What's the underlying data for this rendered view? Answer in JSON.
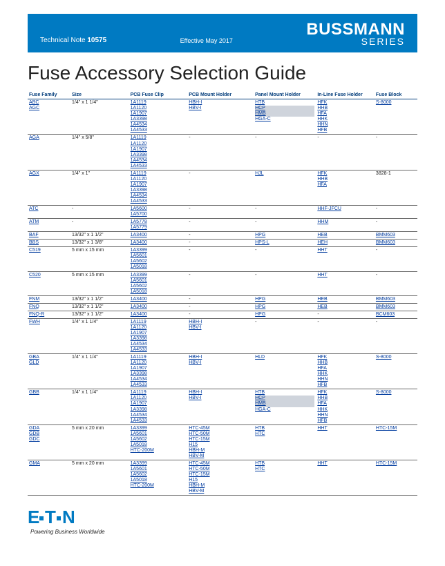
{
  "header": {
    "technote_label": "Technical Note",
    "technote_num": "10575",
    "effective": "Effective May 2017",
    "brand_top": "BUSSMANN",
    "brand_bot": "SERIES"
  },
  "title": "Fuse Accessory Selection Guide",
  "columns": [
    "Fuse Family",
    "Size",
    "PCB Fuse Clip",
    "PCB Mount Holder",
    "Panel Mount Holder",
    "In-Line Fuse Holder",
    "Fuse Block"
  ],
  "rows": [
    {
      "family": [
        "ABC",
        "AGC"
      ],
      "size": "1/4\" x 1 1/4\"",
      "clip": [
        "1A1119",
        "1A1120",
        "1A1907",
        "1A3398",
        "1A4534",
        "1A4533"
      ],
      "pcb": [
        "HBH-I",
        "HBV-I"
      ],
      "panel": [
        "HTB",
        "HCP",
        "HMB",
        "HGA-C"
      ],
      "inline": [
        "HFK",
        "HHB",
        "HFA",
        "HHK",
        "HHN",
        "HFB"
      ],
      "block": [
        "S-8000"
      ]
    },
    {
      "family": [
        "AGA"
      ],
      "size": "1/4\" x 5/8\"",
      "clip": [
        "1A1119",
        "1A1120",
        "1A1907",
        "1A3398",
        "1A4534",
        "1A4533"
      ],
      "pcb": [
        "-"
      ],
      "panel": [
        "-"
      ],
      "inline": [
        "-"
      ],
      "block": [
        "-"
      ]
    },
    {
      "family": [
        "AGX"
      ],
      "size": "1/4\" x 1\"",
      "clip": [
        "1A1119",
        "1A1120",
        "1A1907",
        "1A3398",
        "1A4534",
        "1A4533"
      ],
      "pcb": [
        "-"
      ],
      "panel": [
        "HJL"
      ],
      "inline": [
        "HFK",
        "HHB",
        "HFA"
      ],
      "block": [
        "3828-1"
      ]
    },
    {
      "family": [
        "ATC"
      ],
      "size": "-",
      "clip": [
        "1A5600",
        "1A5700"
      ],
      "pcb": [
        "-"
      ],
      "panel": [
        "-"
      ],
      "inline": [
        "HHF-JFCU"
      ],
      "block": [
        "-"
      ]
    },
    {
      "family": [
        "ATM"
      ],
      "size": "-",
      "clip": [
        "1A5778",
        "1A5779"
      ],
      "pcb": [
        "-"
      ],
      "panel": [
        "-"
      ],
      "inline": [
        "HHM"
      ],
      "block": [
        "-"
      ]
    },
    {
      "family": [
        "BAF"
      ],
      "size": "13/32\" x 1 1/2\"",
      "clip": [
        "1A3400"
      ],
      "pcb": [
        "-"
      ],
      "panel": [
        "HPG"
      ],
      "inline": [
        "HEB"
      ],
      "block": [
        "BMM603"
      ]
    },
    {
      "family": [
        "BBS"
      ],
      "size": "13/32\" x 1 3/8\"",
      "clip": [
        "1A3400"
      ],
      "pcb": [
        "-"
      ],
      "panel": [
        "HPS-L"
      ],
      "inline": [
        "HEH"
      ],
      "block": [
        "BMM603"
      ]
    },
    {
      "family": [
        "C519"
      ],
      "size": "5 mm x 15 mm",
      "clip": [
        "1A3399",
        "1A5601",
        "1A5602",
        "1A5018"
      ],
      "pcb": [
        "-"
      ],
      "panel": [
        "-"
      ],
      "inline": [
        "HHT"
      ],
      "block": [
        "-"
      ]
    },
    {
      "family": [
        "C520"
      ],
      "size": "5 mm x 15 mm",
      "clip": [
        "1A3399",
        "1A5601",
        "1A5602",
        "1A5018"
      ],
      "pcb": [
        "-"
      ],
      "panel": [
        "-"
      ],
      "inline": [
        "HHT"
      ],
      "block": [
        "-"
      ]
    },
    {
      "family": [
        "FNM"
      ],
      "size": "13/32\" x 1 1/2\"",
      "clip": [
        "1A3400"
      ],
      "pcb": [
        "-"
      ],
      "panel": [
        "HPG"
      ],
      "inline": [
        "HEB"
      ],
      "block": [
        "BMM603"
      ]
    },
    {
      "family": [
        "FNQ"
      ],
      "size": "13/32\" x 1 1/2\"",
      "clip": [
        "1A3400"
      ],
      "pcb": [
        "-"
      ],
      "panel": [
        "HPG"
      ],
      "inline": [
        "HEB"
      ],
      "block": [
        "BMM603"
      ]
    },
    {
      "family": [
        "FNQ-R"
      ],
      "size": "13/32\" x 1 1/2\"",
      "clip": [
        "1A3400"
      ],
      "pcb": [
        "-"
      ],
      "panel": [
        "HPG"
      ],
      "inline": [
        "-"
      ],
      "block": [
        "BCM603"
      ]
    },
    {
      "family": [
        "FWH"
      ],
      "size": "1/4\" x 1 1/4\"",
      "clip": [
        "1A1119",
        "1A1120",
        "1A1907",
        "1A3398",
        "1A4534",
        "1A4533"
      ],
      "pcb": [
        "HBH-I",
        "HBV-I"
      ],
      "panel": [
        "-"
      ],
      "inline": [
        "-"
      ],
      "block": [
        "-"
      ]
    },
    {
      "family": [
        "GBA",
        "GLD"
      ],
      "size": "1/4\" x 1 1/4\"",
      "clip": [
        "1A1119",
        "1A1120",
        "1A1907",
        "1A3398",
        "1A4534",
        "1A4533"
      ],
      "pcb": [
        "HBH-I",
        "HBV-I"
      ],
      "panel": [
        "HLD"
      ],
      "inline": [
        "HFK",
        "HHB",
        "HFA",
        "HHK",
        "HHN",
        "HFB"
      ],
      "block": [
        "S-8000"
      ]
    },
    {
      "family": [
        "GBB"
      ],
      "size": "1/4\" x 1 1/4\"",
      "clip": [
        "1A1119",
        "1A1120",
        "1A1907",
        "1A3398",
        "1A4534",
        "1A4533"
      ],
      "pcb": [
        "HBH-I",
        "HBV-I"
      ],
      "panel": [
        "HTB",
        "HCP",
        "HMB",
        "HGA-C"
      ],
      "inline": [
        "HFK",
        "HHB",
        "HFA",
        "HHK",
        "HHN",
        "HFB"
      ],
      "block": [
        "S-8000"
      ]
    },
    {
      "family": [
        "GDA",
        "GDB",
        "GDC"
      ],
      "size": "5 mm x 20 mm",
      "clip": [
        "1A3399",
        "1A5601",
        "1A5602",
        "1A5018",
        "HTC-200M"
      ],
      "pcb": [
        "HTC-45M",
        "HTC-50M",
        "HTC-15M",
        "H15",
        "HBH-M",
        "HBV-M"
      ],
      "panel": [
        "HTB",
        "HTC"
      ],
      "inline": [
        "HHT"
      ],
      "block": [
        "HTC-15M"
      ]
    },
    {
      "family": [
        "GMA"
      ],
      "size": "5 mm x 20 mm",
      "clip": [
        "1A3399",
        "1A5601",
        "1A5602",
        "1A5018",
        "HTC-200M"
      ],
      "pcb": [
        "HTC-45M",
        "HTC-50M",
        "HTC-15M",
        "H15",
        "HBH-M",
        "HBV-M"
      ],
      "panel": [
        "HTB",
        "HTC"
      ],
      "inline": [
        "HHT"
      ],
      "block": [
        "HTC-15M"
      ]
    }
  ],
  "footer": {
    "logo": "E•T•N",
    "tagline": "Powering Business Worldwide"
  },
  "colors": {
    "band_bg": "#007ac2",
    "link": "#003b9e",
    "header_rule": "#003b7a"
  }
}
